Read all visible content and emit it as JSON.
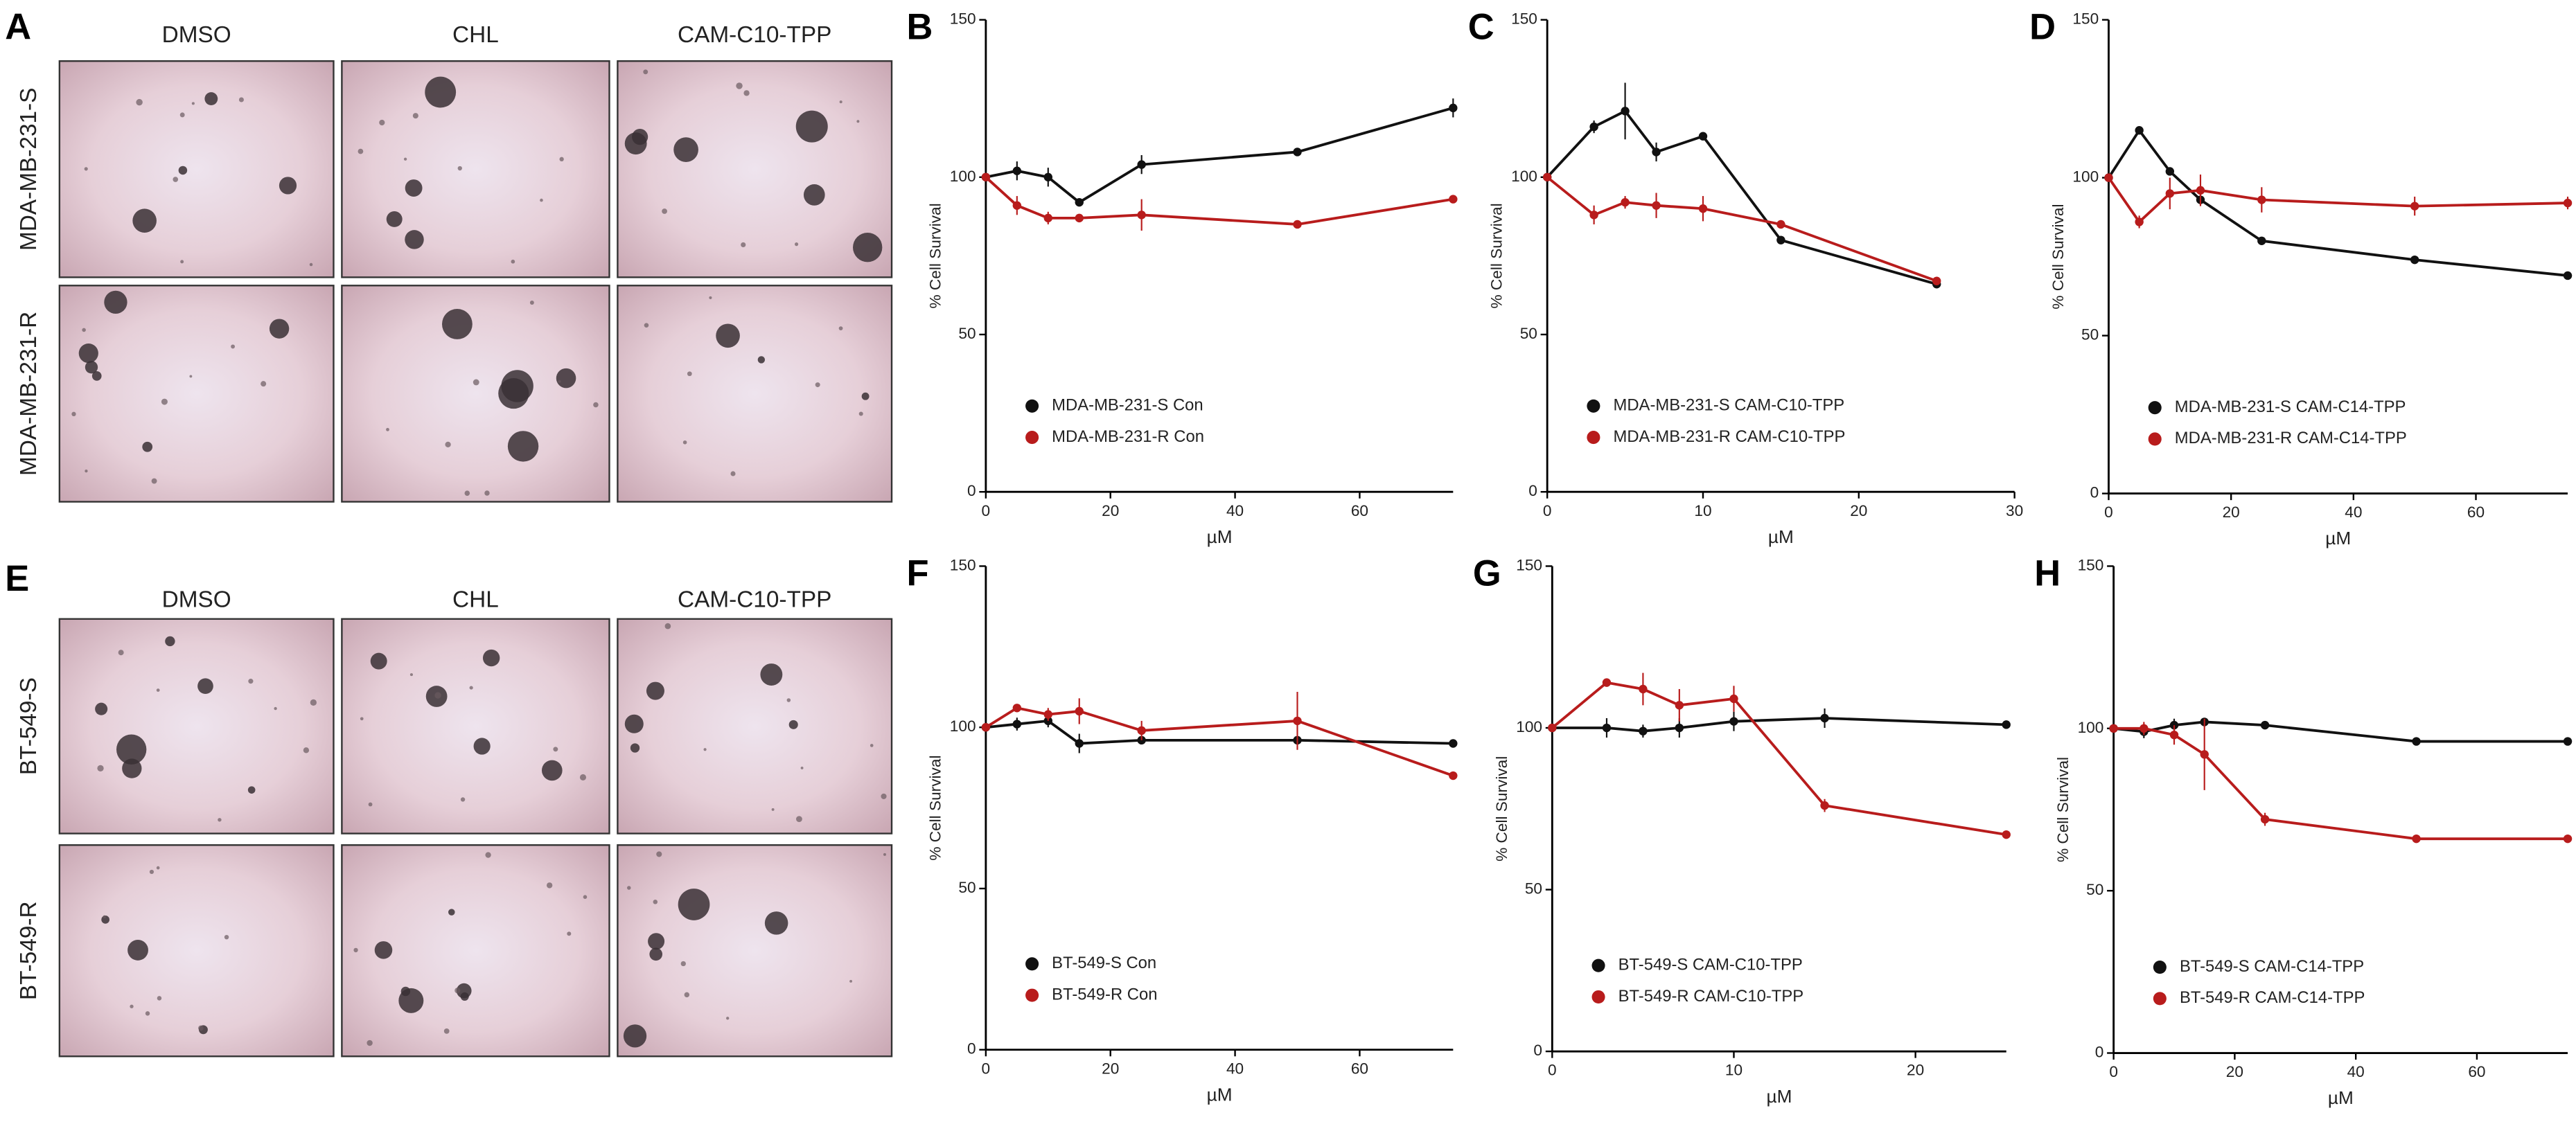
{
  "figure_letters": [
    "A",
    "E"
  ],
  "image_grids": [
    {
      "columns": [
        "DMSO",
        "CHL",
        "CAM-C10-TPP"
      ],
      "rows": [
        "MDA-MB-231-S",
        "MDA-MB-231-R"
      ]
    },
    {
      "columns": [
        "DMSO",
        "CHL",
        "CAM-C10-TPP"
      ],
      "rows": [
        "BT-549-S",
        "BT-549-R"
      ]
    }
  ],
  "chart_data": [
    {
      "type": "line",
      "label": "B",
      "xlabel": "µM",
      "ylabel": "% Cell Survival",
      "x": [
        0,
        5,
        10,
        15,
        25,
        50,
        75
      ],
      "xlim": [
        0,
        75
      ],
      "xticks": [
        0,
        20,
        40,
        60
      ],
      "ylim": [
        0,
        150
      ],
      "yticks": [
        0,
        50,
        100,
        150
      ],
      "series": [
        {
          "name": "MDA-MB-231-S  Con",
          "color": "#111111",
          "values": [
            100,
            102,
            100,
            92,
            104,
            108,
            122
          ],
          "errors": [
            0,
            3,
            3,
            1,
            3,
            1,
            3
          ]
        },
        {
          "name": "MDA-MB-231-R  Con",
          "color": "#b81c1c",
          "values": [
            100,
            91,
            87,
            87,
            88,
            85,
            93
          ],
          "errors": [
            0,
            3,
            2,
            1,
            5,
            1,
            1
          ]
        }
      ]
    },
    {
      "type": "line",
      "label": "C",
      "xlabel": "µM",
      "ylabel": "% Cell Survival",
      "x": [
        0,
        3,
        5,
        7,
        10,
        15,
        25
      ],
      "xlim": [
        0,
        30
      ],
      "xticks": [
        0,
        10,
        20,
        30
      ],
      "ylim": [
        0,
        150
      ],
      "yticks": [
        0,
        50,
        100,
        150
      ],
      "series": [
        {
          "name": "MDA-MB-231-S   CAM-C10-TPP",
          "color": "#111111",
          "values": [
            100,
            116,
            121,
            108,
            113,
            80,
            66
          ],
          "errors": [
            0,
            2,
            9,
            3,
            1,
            1,
            1
          ]
        },
        {
          "name": "MDA-MB-231-R   CAM-C10-TPP",
          "color": "#b81c1c",
          "values": [
            100,
            88,
            92,
            91,
            90,
            85,
            67
          ],
          "errors": [
            0,
            3,
            2,
            4,
            4,
            1,
            1
          ]
        }
      ]
    },
    {
      "type": "line",
      "label": "D",
      "xlabel": "µM",
      "ylabel": "% Cell Survival",
      "x": [
        0,
        5,
        10,
        15,
        25,
        50,
        75
      ],
      "xlim": [
        0,
        75
      ],
      "xticks": [
        0,
        20,
        40,
        60
      ],
      "ylim": [
        0,
        150
      ],
      "yticks": [
        0,
        50,
        100,
        150
      ],
      "series": [
        {
          "name": "MDA-MB-231-S   CAM-C14-TPP",
          "color": "#111111",
          "values": [
            100,
            115,
            102,
            93,
            80,
            74,
            69
          ],
          "errors": [
            0,
            1,
            1,
            1,
            1,
            1,
            1
          ]
        },
        {
          "name": "MDA-MB-231-R   CAM-C14-TPP",
          "color": "#b81c1c",
          "values": [
            100,
            86,
            95,
            96,
            93,
            91,
            92
          ],
          "errors": [
            0,
            2,
            5,
            5,
            4,
            3,
            2
          ]
        }
      ]
    },
    {
      "type": "line",
      "label": "F",
      "xlabel": "µM",
      "ylabel": "% Cell Survival",
      "x": [
        0,
        5,
        10,
        15,
        25,
        50,
        75
      ],
      "xlim": [
        0,
        75
      ],
      "xticks": [
        0,
        20,
        40,
        60
      ],
      "ylim": [
        0,
        150
      ],
      "yticks": [
        0,
        50,
        100,
        150
      ],
      "series": [
        {
          "name": "BT-549-S  Con",
          "color": "#111111",
          "values": [
            100,
            101,
            102,
            95,
            96,
            96,
            95
          ],
          "errors": [
            0,
            2,
            2,
            3,
            1,
            1,
            1
          ]
        },
        {
          "name": "BT-549-R  Con",
          "color": "#b81c1c",
          "values": [
            100,
            106,
            104,
            105,
            99,
            102,
            85
          ],
          "errors": [
            0,
            1,
            2,
            4,
            3,
            9,
            1
          ]
        }
      ]
    },
    {
      "type": "line",
      "label": "G",
      "xlabel": "µM",
      "ylabel": "% Cell Survival",
      "x": [
        0,
        3,
        5,
        7,
        10,
        15,
        25
      ],
      "xlim": [
        0,
        25
      ],
      "xticks": [
        0,
        10,
        20
      ],
      "ylim": [
        0,
        150
      ],
      "yticks": [
        0,
        50,
        100,
        150
      ],
      "series": [
        {
          "name": "BT-549-S  CAM-C10-TPP",
          "color": "#111111",
          "values": [
            100,
            100,
            99,
            100,
            102,
            103,
            101
          ],
          "errors": [
            0,
            3,
            2,
            3,
            3,
            3,
            1
          ]
        },
        {
          "name": "BT-549-R  CAM-C10-TPP",
          "color": "#b81c1c",
          "values": [
            100,
            114,
            112,
            107,
            109,
            76,
            67
          ],
          "errors": [
            0,
            1,
            5,
            5,
            4,
            2,
            1
          ]
        }
      ]
    },
    {
      "type": "line",
      "label": "H",
      "xlabel": "µM",
      "ylabel": "% Cell Survival",
      "x": [
        0,
        5,
        10,
        15,
        25,
        50,
        75
      ],
      "xlim": [
        0,
        75
      ],
      "xticks": [
        0,
        20,
        40,
        60
      ],
      "ylim": [
        0,
        150
      ],
      "yticks": [
        0,
        50,
        100,
        150
      ],
      "series": [
        {
          "name": "BT-549-S  CAM-C14-TPP",
          "color": "#111111",
          "values": [
            100,
            99,
            101,
            102,
            101,
            96,
            96
          ],
          "errors": [
            0,
            2,
            2,
            1,
            1,
            1,
            1
          ]
        },
        {
          "name": "BT-549-R  CAM-C14-TPP",
          "color": "#b81c1c",
          "values": [
            100,
            100,
            98,
            92,
            72,
            66,
            66
          ],
          "errors": [
            0,
            2,
            3,
            11,
            2,
            1,
            1
          ]
        }
      ]
    }
  ]
}
